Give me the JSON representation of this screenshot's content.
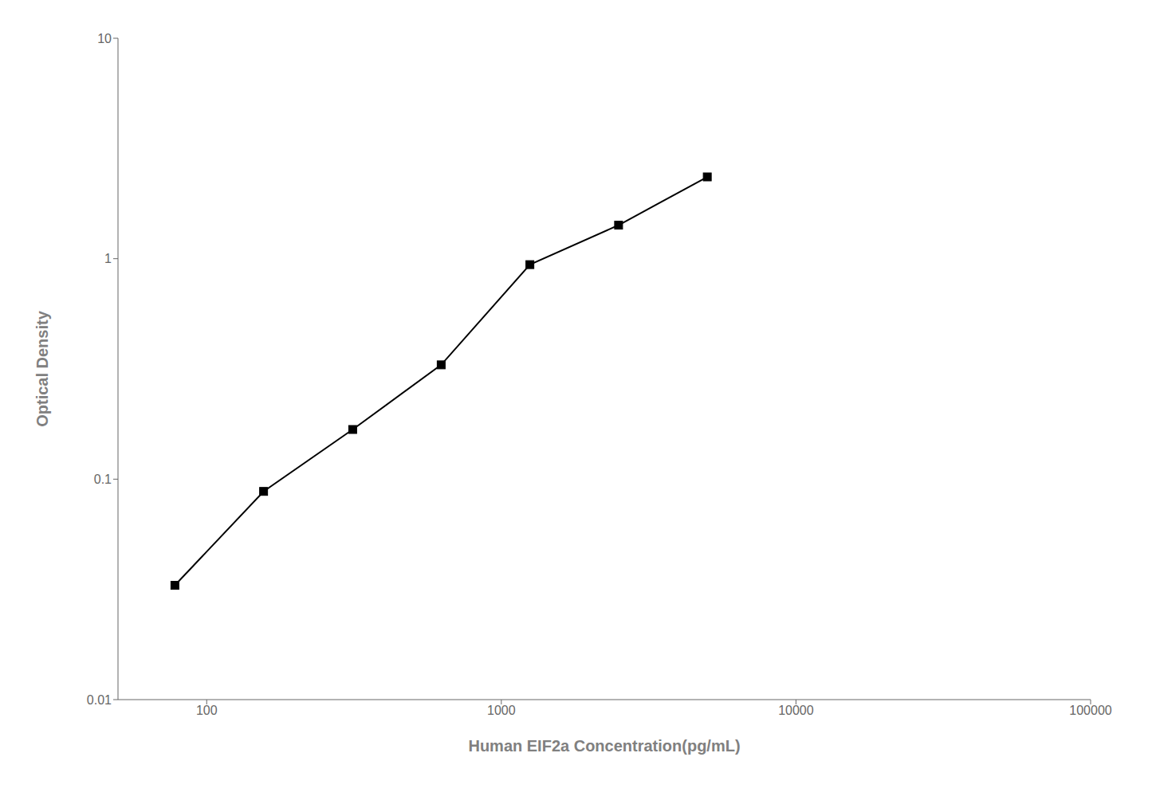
{
  "chart_data": {
    "type": "line",
    "x": [
      78,
      156,
      313,
      625,
      1250,
      2500,
      5000
    ],
    "values": [
      0.033,
      0.088,
      0.168,
      0.33,
      0.94,
      1.42,
      2.35
    ],
    "xlim": [
      50,
      100000
    ],
    "ylim": [
      0.01,
      10
    ],
    "xticks": [
      100,
      1000,
      10000,
      100000
    ],
    "yticks": [
      0.01,
      0.1,
      1,
      10
    ],
    "xlabel": "Human EIF2a Concentration(pg/mL)",
    "ylabel": "Optical Density",
    "log": true,
    "grid": false,
    "color": "#000000",
    "marker": "square"
  }
}
